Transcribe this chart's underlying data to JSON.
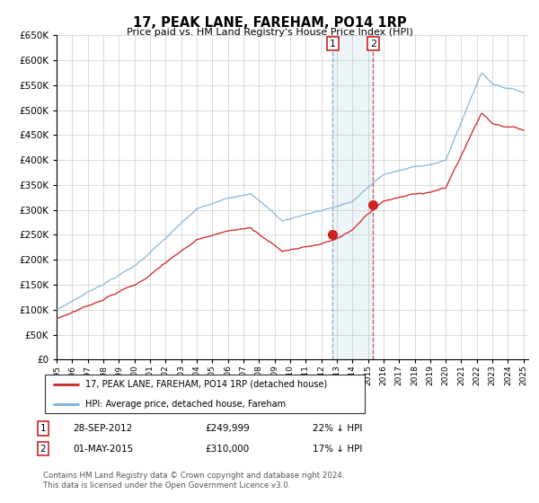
{
  "title": "17, PEAK LANE, FAREHAM, PO14 1RP",
  "subtitle": "Price paid vs. HM Land Registry's House Price Index (HPI)",
  "ytick_values": [
    0,
    50000,
    100000,
    150000,
    200000,
    250000,
    300000,
    350000,
    400000,
    450000,
    500000,
    550000,
    600000,
    650000
  ],
  "x_start_year": 1995,
  "x_end_year": 2025,
  "transaction1_date": 2012.74,
  "transaction1_value": 249999,
  "transaction2_date": 2015.33,
  "transaction2_value": 310000,
  "legend_line1": "17, PEAK LANE, FAREHAM, PO14 1RP (detached house)",
  "legend_line2": "HPI: Average price, detached house, Fareham",
  "table_row1": [
    "1",
    "28-SEP-2012",
    "£249,999",
    "22% ↓ HPI"
  ],
  "table_row2": [
    "2",
    "01-MAY-2015",
    "£310,000",
    "17% ↓ HPI"
  ],
  "footer": "Contains HM Land Registry data © Crown copyright and database right 2024.\nThis data is licensed under the Open Government Licence v3.0.",
  "hpi_color": "#7bafd4",
  "price_color": "#cc2222",
  "grid_color": "#cccccc",
  "background_color": "#ffffff",
  "vline1_color": "#aaaacc",
  "vline2_color": "#cc3333",
  "box_color": "#cc2222"
}
